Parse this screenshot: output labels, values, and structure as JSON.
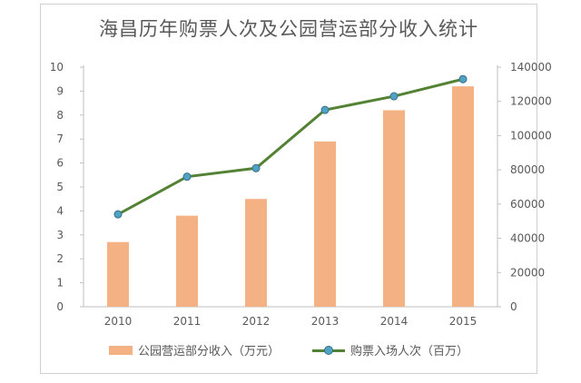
{
  "chart_data": {
    "type": "bar",
    "title": "海昌历年购票人次及公园营运部分收入统计",
    "categories": [
      "2010",
      "2011",
      "2012",
      "2013",
      "2014",
      "2015"
    ],
    "series": [
      {
        "name": "公园营运部分收入（万元）",
        "type": "bar",
        "axis": "left",
        "values": [
          2.7,
          3.8,
          4.5,
          6.9,
          8.2,
          9.2
        ],
        "color": "#f4b183"
      },
      {
        "name": "购票入场人次（百万）",
        "type": "line",
        "axis": "right",
        "values": [
          54000,
          76000,
          81000,
          115000,
          123000,
          133000
        ],
        "color": "#548235",
        "marker_color": "#4ea2c4"
      }
    ],
    "y_left": {
      "min": 0,
      "max": 10,
      "step": 1,
      "ticks": [
        "0",
        "1",
        "2",
        "3",
        "4",
        "5",
        "6",
        "7",
        "8",
        "9",
        "10"
      ]
    },
    "y_right": {
      "min": 0,
      "max": 140000,
      "step": 20000,
      "ticks": [
        "0",
        "20000",
        "40000",
        "60000",
        "80000",
        "100000",
        "120000",
        "140000"
      ]
    },
    "grid": false,
    "legend": "bottom"
  }
}
